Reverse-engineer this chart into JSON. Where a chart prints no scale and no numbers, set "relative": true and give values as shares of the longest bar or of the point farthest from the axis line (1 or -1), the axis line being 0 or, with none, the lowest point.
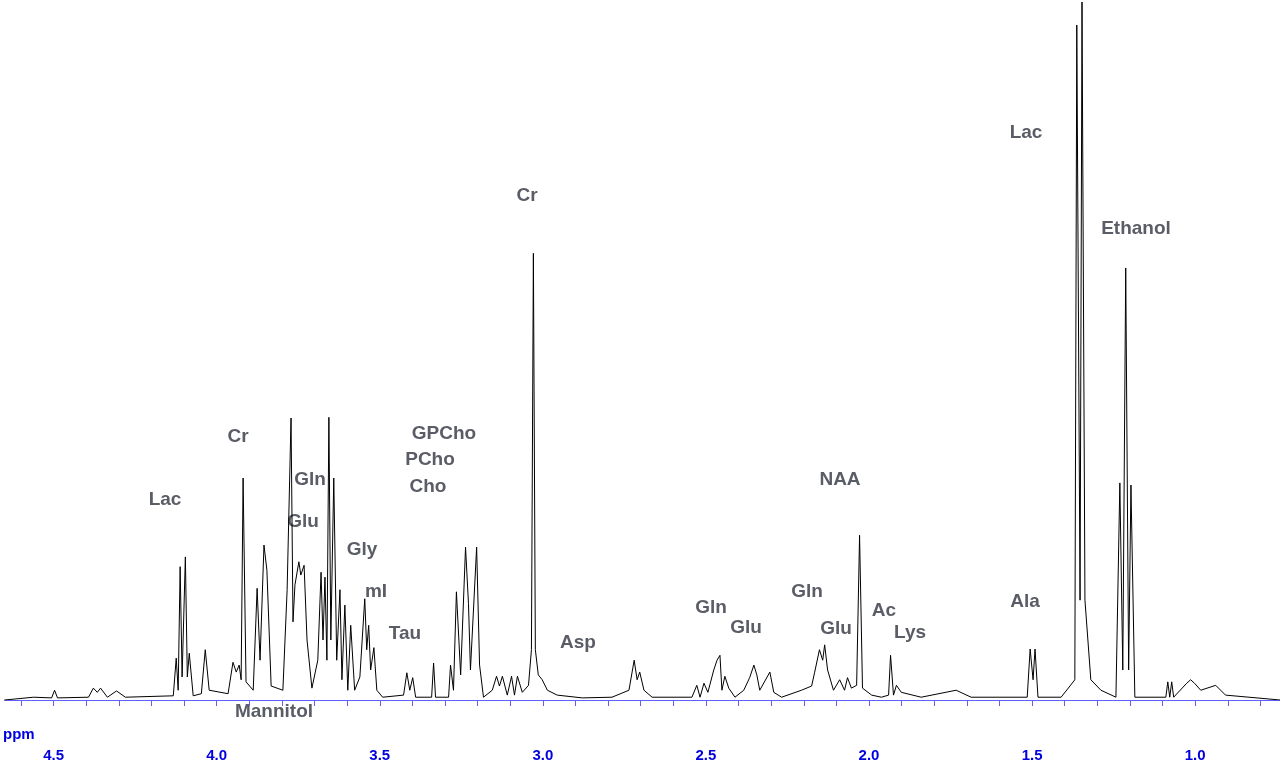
{
  "chart_data": {
    "type": "line",
    "relative": true,
    "xlabel": "ppm",
    "grid": false,
    "marker": "none",
    "line_style": "solid",
    "xlim": [
      4.65,
      0.74
    ],
    "xticks": [
      {
        "value": 4.6,
        "label": null
      },
      {
        "value": 4.5,
        "label": "4.5"
      },
      {
        "value": 4.4,
        "label": null
      },
      {
        "value": 4.3,
        "label": null
      },
      {
        "value": 4.2,
        "label": null
      },
      {
        "value": 4.1,
        "label": null
      },
      {
        "value": 4.0,
        "label": "4.0"
      },
      {
        "value": 3.9,
        "label": null
      },
      {
        "value": 3.8,
        "label": null
      },
      {
        "value": 3.7,
        "label": null
      },
      {
        "value": 3.6,
        "label": null
      },
      {
        "value": 3.5,
        "label": "3.5"
      },
      {
        "value": 3.4,
        "label": null
      },
      {
        "value": 3.3,
        "label": null
      },
      {
        "value": 3.2,
        "label": null
      },
      {
        "value": 3.1,
        "label": null
      },
      {
        "value": 3.0,
        "label": "3.0"
      },
      {
        "value": 2.9,
        "label": null
      },
      {
        "value": 2.8,
        "label": null
      },
      {
        "value": 2.7,
        "label": null
      },
      {
        "value": 2.6,
        "label": null
      },
      {
        "value": 2.5,
        "label": "2.5"
      },
      {
        "value": 2.4,
        "label": null
      },
      {
        "value": 2.3,
        "label": null
      },
      {
        "value": 2.2,
        "label": null
      },
      {
        "value": 2.1,
        "label": null
      },
      {
        "value": 2.0,
        "label": "2.0"
      },
      {
        "value": 1.9,
        "label": null
      },
      {
        "value": 1.8,
        "label": null
      },
      {
        "value": 1.7,
        "label": null
      },
      {
        "value": 1.6,
        "label": null
      },
      {
        "value": 1.5,
        "label": "1.5"
      },
      {
        "value": 1.4,
        "label": null
      },
      {
        "value": 1.3,
        "label": null
      },
      {
        "value": 1.2,
        "label": null
      },
      {
        "value": 1.1,
        "label": null
      },
      {
        "value": 1.0,
        "label": "1.0"
      },
      {
        "value": 0.9,
        "label": null
      },
      {
        "value": 0.8,
        "label": null
      }
    ],
    "series": [
      {
        "color": "#000000",
        "x": [
          4.65,
          4.561,
          4.506,
          4.497,
          4.488,
          4.393,
          4.378,
          4.366,
          4.356,
          4.335,
          4.307,
          4.28,
          4.133,
          4.124,
          4.118,
          4.112,
          4.106,
          4.096,
          4.09,
          4.084,
          4.072,
          4.047,
          4.035,
          4.023,
          3.965,
          3.95,
          3.94,
          3.931,
          3.925,
          3.919,
          3.91,
          3.888,
          3.876,
          3.867,
          3.855,
          3.846,
          3.833,
          3.797,
          3.784,
          3.772,
          3.766,
          3.76,
          3.748,
          3.742,
          3.732,
          3.723,
          3.708,
          3.69,
          3.68,
          3.674,
          3.668,
          3.662,
          3.656,
          3.65,
          3.641,
          3.632,
          3.622,
          3.616,
          3.607,
          3.598,
          3.589,
          3.577,
          3.561,
          3.546,
          3.54,
          3.534,
          3.528,
          3.518,
          3.509,
          3.491,
          3.427,
          3.417,
          3.408,
          3.399,
          3.39,
          3.341,
          3.335,
          3.329,
          3.289,
          3.283,
          3.274,
          3.265,
          3.252,
          3.237,
          3.228,
          3.222,
          3.203,
          3.194,
          3.182,
          3.155,
          3.142,
          3.133,
          3.124,
          3.109,
          3.096,
          3.087,
          3.078,
          3.063,
          3.044,
          3.035,
          3.029,
          3.023,
          3.014,
          3.002,
          2.986,
          2.956,
          2.879,
          2.788,
          2.736,
          2.72,
          2.711,
          2.703,
          2.69,
          2.665,
          2.543,
          2.528,
          2.518,
          2.506,
          2.494,
          2.476,
          2.466,
          2.457,
          2.451,
          2.442,
          2.43,
          2.411,
          2.384,
          2.366,
          2.353,
          2.344,
          2.335,
          2.304,
          2.292,
          2.268,
          2.207,
          2.176,
          2.167,
          2.152,
          2.142,
          2.136,
          2.127,
          2.109,
          2.09,
          2.075,
          2.066,
          2.054,
          2.038,
          2.029,
          2.02,
          1.992,
          1.962,
          1.94,
          1.934,
          1.925,
          1.916,
          1.901,
          1.84,
          1.733,
          1.687,
          1.515,
          1.506,
          1.497,
          1.491,
          1.482,
          1.411,
          1.369,
          1.363,
          1.353,
          1.347,
          1.338,
          1.32,
          1.289,
          1.243,
          1.231,
          1.222,
          1.213,
          1.204,
          1.197,
          1.185,
          1.09,
          1.084,
          1.078,
          1.072,
          1.066,
          1.026,
          1.014,
          1.002,
          0.983,
          0.937,
          0.907,
          0.74
        ],
        "values": [
          0,
          0.004,
          0.003,
          0.014,
          0.003,
          0.004,
          0.017,
          0.011,
          0.017,
          0.004,
          0.013,
          0.004,
          0.006,
          0.06,
          0.014,
          0.191,
          0.033,
          0.205,
          0.033,
          0.067,
          0.006,
          0.009,
          0.072,
          0.014,
          0.009,
          0.054,
          0.04,
          0.05,
          0.029,
          0.318,
          0.026,
          0.014,
          0.16,
          0.057,
          0.222,
          0.186,
          0.02,
          0.014,
          0.158,
          0.404,
          0.112,
          0.165,
          0.198,
          0.179,
          0.193,
          0.086,
          0.017,
          0.057,
          0.183,
          0.086,
          0.176,
          0.057,
          0.405,
          0.086,
          0.318,
          0.057,
          0.158,
          0.029,
          0.136,
          0.014,
          0.107,
          0.014,
          0.033,
          0.145,
          0.072,
          0.107,
          0.043,
          0.075,
          0.014,
          0.004,
          0.007,
          0.039,
          0.014,
          0.032,
          0.004,
          0.004,
          0.053,
          0.004,
          0.004,
          0.05,
          0.014,
          0.155,
          0.036,
          0.219,
          0.138,
          0.043,
          0.219,
          0.05,
          0.004,
          0.014,
          0.034,
          0.02,
          0.034,
          0.007,
          0.034,
          0.007,
          0.034,
          0.011,
          0.021,
          0.072,
          0.64,
          0.072,
          0.036,
          0.029,
          0.014,
          0.007,
          0.003,
          0.004,
          0.014,
          0.057,
          0.029,
          0.04,
          0.014,
          0.004,
          0.004,
          0.021,
          0.004,
          0.024,
          0.011,
          0.043,
          0.057,
          0.064,
          0.014,
          0.034,
          0.017,
          0.004,
          0.014,
          0.032,
          0.05,
          0.036,
          0.014,
          0.04,
          0.011,
          0.004,
          0.014,
          0.02,
          0.039,
          0.072,
          0.057,
          0.079,
          0.043,
          0.014,
          0.029,
          0.014,
          0.032,
          0.017,
          0.021,
          0.236,
          0.017,
          0.007,
          0.004,
          0.007,
          0.064,
          0.007,
          0.021,
          0.011,
          0.004,
          0.014,
          0.004,
          0.004,
          0.073,
          0.029,
          0.073,
          0.004,
          0.004,
          0.029,
          0.967,
          0.143,
          1,
          0.143,
          0.029,
          0.014,
          0.004,
          0.311,
          0.043,
          0.619,
          0.043,
          0.308,
          0.004,
          0.004,
          0.026,
          0.004,
          0.026,
          0.004,
          0.024,
          0.029,
          0.024,
          0.014,
          0.021,
          0.007,
          0
        ]
      }
    ],
    "annotations": [
      "Lac",
      "Cr",
      "Mannitol",
      "Gln",
      "Glu",
      "Gly",
      "mI",
      "Tau",
      "GPCho",
      "PCho",
      "Cho",
      "Cr",
      "Asp",
      "Gln",
      "Glu",
      "Gln",
      "Glu",
      "NAA",
      "Ac",
      "Lys",
      "Ala",
      "Lac",
      "Ethanol"
    ]
  }
}
